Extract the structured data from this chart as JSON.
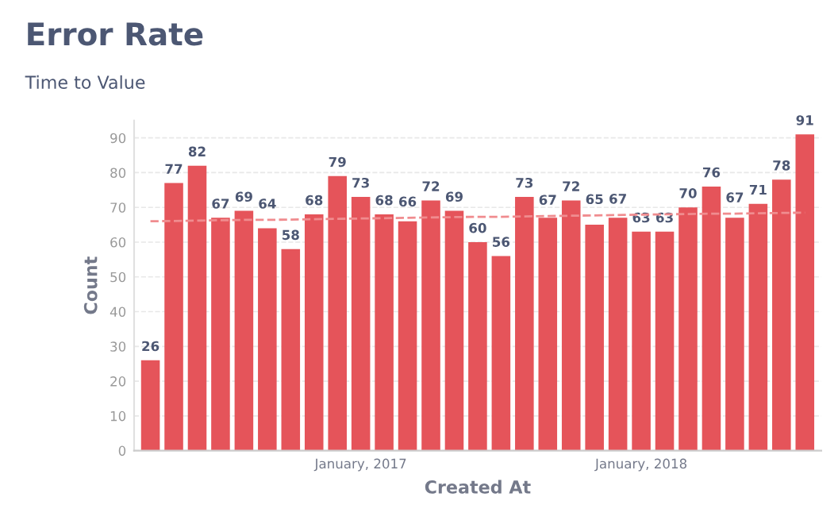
{
  "chart_data": {
    "type": "bar",
    "title": "Error Rate",
    "subtitle": "Time to Value",
    "xlabel": "Created At",
    "ylabel": "Count",
    "categories": [
      null,
      null,
      null,
      null,
      null,
      null,
      null,
      null,
      null,
      "January, 2017",
      null,
      null,
      null,
      null,
      null,
      null,
      null,
      null,
      null,
      null,
      null,
      "January, 2018",
      null,
      null,
      null,
      null,
      null,
      null,
      null
    ],
    "series": [
      {
        "color": "#e5545a",
        "values": [
          26,
          77,
          82,
          67,
          69,
          64,
          58,
          68,
          79,
          73,
          68,
          66,
          72,
          69,
          60,
          56,
          73,
          67,
          72,
          65,
          67,
          63,
          63,
          70,
          76,
          67,
          71,
          78,
          91
        ],
        "value_labels": [
          "26",
          "77",
          "82",
          "67",
          "69",
          "64",
          "58",
          "68",
          "79",
          "73",
          "68",
          "66",
          "72",
          "69",
          "60",
          "56",
          "73",
          "67",
          "72",
          "65",
          "67",
          "63",
          "63",
          "70",
          "76",
          "67",
          "71",
          "78",
          "91"
        ]
      },
      {
        "type": "line",
        "color": "#f08c8f",
        "line_style": "dashed",
        "values": [
          66.0,
          66.1,
          66.2,
          66.3,
          66.4,
          66.4,
          66.5,
          66.6,
          66.7,
          66.8,
          66.9,
          67.0,
          67.1,
          67.2,
          67.3,
          67.3,
          67.4,
          67.5,
          67.6,
          67.7,
          67.8,
          67.9,
          68.0,
          68.1,
          68.2,
          68.2,
          68.3,
          68.4,
          68.5
        ]
      }
    ],
    "ylim": [
      0,
      95
    ],
    "yticks": [
      0,
      10,
      20,
      30,
      40,
      50,
      60,
      70,
      80,
      90
    ],
    "grid": "y"
  }
}
